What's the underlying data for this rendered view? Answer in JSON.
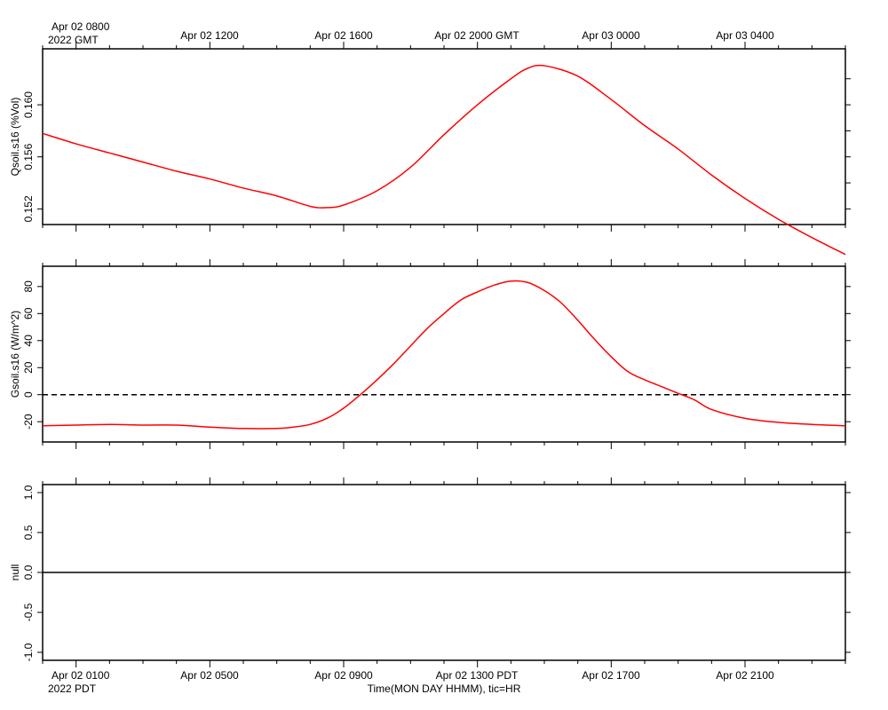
{
  "top_axis": {
    "first_label": "Apr 02 0800",
    "first_label_year": "2022 GMT",
    "labels": [
      "Apr 02 1200",
      "Apr 02 1600",
      "Apr 02 2000 GMT",
      "Apr 03 0000",
      "Apr 03 0400"
    ]
  },
  "bottom_axis": {
    "first_label": "Apr 02 0100",
    "first_label_year": "2022 PDT",
    "labels": [
      "Apr 02 0500",
      "Apr 02 0900",
      "Apr 02 1300 PDT",
      "Apr 02 1700",
      "Apr 02 2100"
    ],
    "title": "Time(MON DAY HHMM), tic=HR"
  },
  "colors": {
    "series": "#ff0000",
    "axes": "#000000",
    "zero_line": "#000000"
  },
  "chart_data": [
    {
      "type": "line",
      "ylabel": "Qsoil.s16 (%Vol)",
      "x_units": "hours since Apr 02 0000 PDT",
      "xlim": [
        0,
        24
      ],
      "ylim": [
        0.1508,
        0.1643
      ],
      "yticks": [
        "0.152",
        "0.156",
        "0.160"
      ],
      "grid": false,
      "series": [
        {
          "x": [
            0,
            1,
            2,
            3,
            4,
            5,
            6,
            7,
            8,
            8.5,
            9,
            10,
            11,
            12,
            13,
            14,
            14.5,
            15,
            16,
            17,
            18,
            19,
            20,
            21,
            22,
            23,
            24
          ],
          "y": [
            0.1578,
            0.157,
            0.1563,
            0.1556,
            0.1549,
            0.1543,
            0.1536,
            0.153,
            0.1522,
            0.1521,
            0.1523,
            0.1534,
            0.1552,
            0.1577,
            0.16,
            0.162,
            0.1628,
            0.163,
            0.1622,
            0.1604,
            0.1584,
            0.1566,
            0.1546,
            0.1528,
            0.1512,
            0.1498,
            0.1485
          ]
        }
      ]
    },
    {
      "type": "line",
      "ylabel": "Gsoil.s16 (W/m^2)",
      "x_units": "hours since Apr 02 0000 PDT",
      "xlim": [
        0,
        24
      ],
      "ylim": [
        -35,
        95
      ],
      "yticks": [
        "-20",
        "0",
        "20",
        "40",
        "60",
        "80"
      ],
      "reference_line": {
        "y": 0,
        "style": "dashed"
      },
      "grid": false,
      "series": [
        {
          "x": [
            0,
            1,
            2,
            3,
            4,
            5,
            6,
            7,
            7.5,
            8,
            8.5,
            9,
            9.5,
            10,
            10.5,
            11,
            11.5,
            12,
            12.5,
            13,
            13.5,
            14,
            14.5,
            15,
            15.5,
            16,
            16.5,
            17,
            17.5,
            18,
            18.5,
            19,
            19.5,
            20,
            21,
            22,
            23,
            24
          ],
          "y": [
            -23,
            -22.5,
            -22,
            -22.5,
            -22.5,
            -24,
            -25,
            -25,
            -24,
            -22,
            -17.5,
            -10,
            0,
            11,
            23,
            36,
            49,
            60,
            70,
            76,
            81,
            84,
            83,
            77,
            68,
            55,
            41,
            28,
            17,
            11,
            6,
            1,
            -4,
            -11,
            -17.5,
            -20.5,
            -22,
            -23
          ]
        }
      ]
    },
    {
      "type": "line",
      "ylabel": "null",
      "x_units": "hours since Apr 02 0000 PDT",
      "xlim": [
        0,
        24
      ],
      "ylim": [
        -1.1,
        1.1
      ],
      "yticks": [
        "-1.0",
        "-0.5",
        "0.0",
        "0.5",
        "1.0"
      ],
      "grid": false,
      "series": [
        {
          "x": [
            0,
            24
          ],
          "y": [
            0,
            0
          ]
        }
      ]
    }
  ]
}
